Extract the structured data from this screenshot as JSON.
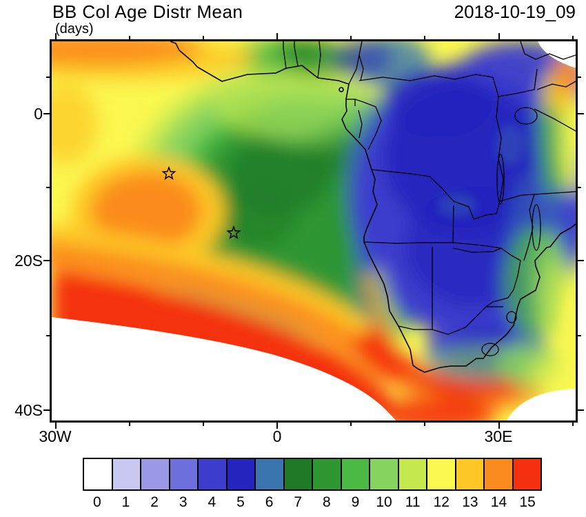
{
  "header": {
    "title": "BB Col Age Distr Mean",
    "units": "(days)",
    "timestamp": "2018-10-19_09"
  },
  "map": {
    "y_axis_labels": [
      "0",
      "20S",
      "40S"
    ],
    "x_axis_labels": [
      "30W",
      "0",
      "30E"
    ],
    "markers": [
      {
        "icon": "star-marker"
      },
      {
        "icon": "star-marker"
      }
    ]
  },
  "colorbar": {
    "labels": [
      "0",
      "1",
      "2",
      "3",
      "4",
      "5",
      "6",
      "7",
      "8",
      "9",
      "10",
      "11",
      "12",
      "13",
      "14",
      "15"
    ],
    "colors": [
      "#ffffff",
      "#c8c8f0",
      "#9999e6",
      "#6e6edc",
      "#3c3ccd",
      "#2424be",
      "#3a75b0",
      "#1f7a28",
      "#2f9632",
      "#4cb944",
      "#86d35f",
      "#c6e84f",
      "#fbf851",
      "#fdc825",
      "#fb8b1e",
      "#f4300e"
    ]
  }
}
